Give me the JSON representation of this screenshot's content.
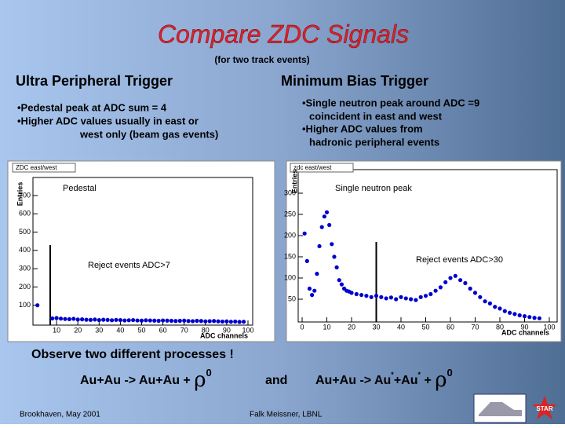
{
  "slide": {
    "title": "Compare ZDC Signals",
    "subtitle": "(for two track events)",
    "left_heading": "Ultra Peripheral Trigger",
    "right_heading": "Minimum Bias Trigger",
    "left_bullets": [
      "•Pedestal  peak at ADC sum = 4",
      "•Higher ADC values  usually in east or",
      "west only  (beam gas events)"
    ],
    "right_bullets": [
      "•Single neutron peak around  ADC =9",
      "coincident in east and west",
      "•Higher ADC values  from",
      "hadronic peripheral  events"
    ],
    "observe": "Observe two different processes !",
    "equation1": [
      "Au+Au -> Au+Au + ",
      "ρ",
      "0"
    ],
    "and": "and",
    "equation2": [
      "Au+Au -> Au",
      "*",
      "+Au",
      "*",
      " + ",
      "ρ",
      "0"
    ],
    "footer_left": "Brookhaven,  May 2001",
    "footer_center": "Falk Meissner, LBNL",
    "logo": "STAR"
  },
  "chart_data": [
    {
      "type": "scatter",
      "title": "ZDC east/west",
      "ylabel": "Entries",
      "xlabel": "ADC channels",
      "annotations": [
        "Pedestal",
        "Reject events ADC>7"
      ],
      "cut": 7,
      "color": "#0000cc",
      "xlim": [
        0,
        100
      ],
      "ylim": [
        0,
        760
      ],
      "xticks": [
        10,
        20,
        30,
        40,
        50,
        60,
        70,
        80,
        90,
        100
      ],
      "yticks": [
        100,
        200,
        300,
        400,
        500,
        600,
        700
      ],
      "x": [
        1,
        8,
        10,
        12,
        14,
        16,
        18,
        20,
        22,
        24,
        26,
        28,
        30,
        32,
        34,
        36,
        38,
        40,
        42,
        44,
        46,
        48,
        50,
        52,
        54,
        56,
        58,
        60,
        62,
        64,
        66,
        68,
        70,
        72,
        74,
        76,
        78,
        80,
        82,
        84,
        86,
        88,
        90,
        92,
        94,
        96,
        98
      ],
      "values": [
        100,
        28,
        30,
        27,
        25,
        24,
        26,
        22,
        23,
        21,
        20,
        22,
        19,
        21,
        20,
        18,
        20,
        19,
        17,
        18,
        19,
        17,
        16,
        18,
        17,
        16,
        15,
        17,
        16,
        15,
        14,
        15,
        16,
        14,
        13,
        15,
        14,
        12,
        13,
        14,
        12,
        11,
        12,
        10,
        11,
        9,
        10
      ]
    },
    {
      "type": "scatter",
      "title": "zdc east/west",
      "ylabel": "Entries",
      "xlabel": "ADC channels",
      "annotations": [
        "Single neutron peak",
        "Reject events ADC>30"
      ],
      "cut": 30,
      "color": "#0000cc",
      "xlim": [
        0,
        100
      ],
      "ylim": [
        0,
        350
      ],
      "xticks": [
        0,
        10,
        20,
        30,
        40,
        50,
        60,
        70,
        80,
        90,
        100
      ],
      "yticks": [
        50,
        100,
        150,
        200,
        250,
        300
      ],
      "x": [
        1,
        2,
        3,
        4,
        5,
        6,
        7,
        8,
        9,
        10,
        11,
        12,
        13,
        14,
        15,
        16,
        17,
        18,
        19,
        20,
        22,
        24,
        26,
        28,
        30,
        32,
        34,
        36,
        38,
        40,
        42,
        44,
        46,
        48,
        50,
        52,
        54,
        56,
        58,
        60,
        62,
        64,
        66,
        68,
        70,
        72,
        74,
        76,
        78,
        80,
        82,
        84,
        86,
        88,
        90,
        92,
        94,
        96
      ],
      "values": [
        205,
        140,
        75,
        60,
        70,
        110,
        175,
        220,
        245,
        255,
        225,
        180,
        150,
        125,
        95,
        85,
        75,
        70,
        68,
        65,
        62,
        60,
        58,
        55,
        58,
        55,
        52,
        54,
        50,
        55,
        52,
        50,
        48,
        55,
        58,
        62,
        70,
        78,
        90,
        100,
        105,
        95,
        88,
        75,
        65,
        55,
        45,
        40,
        32,
        28,
        22,
        18,
        15,
        12,
        10,
        8,
        6,
        5
      ]
    }
  ]
}
